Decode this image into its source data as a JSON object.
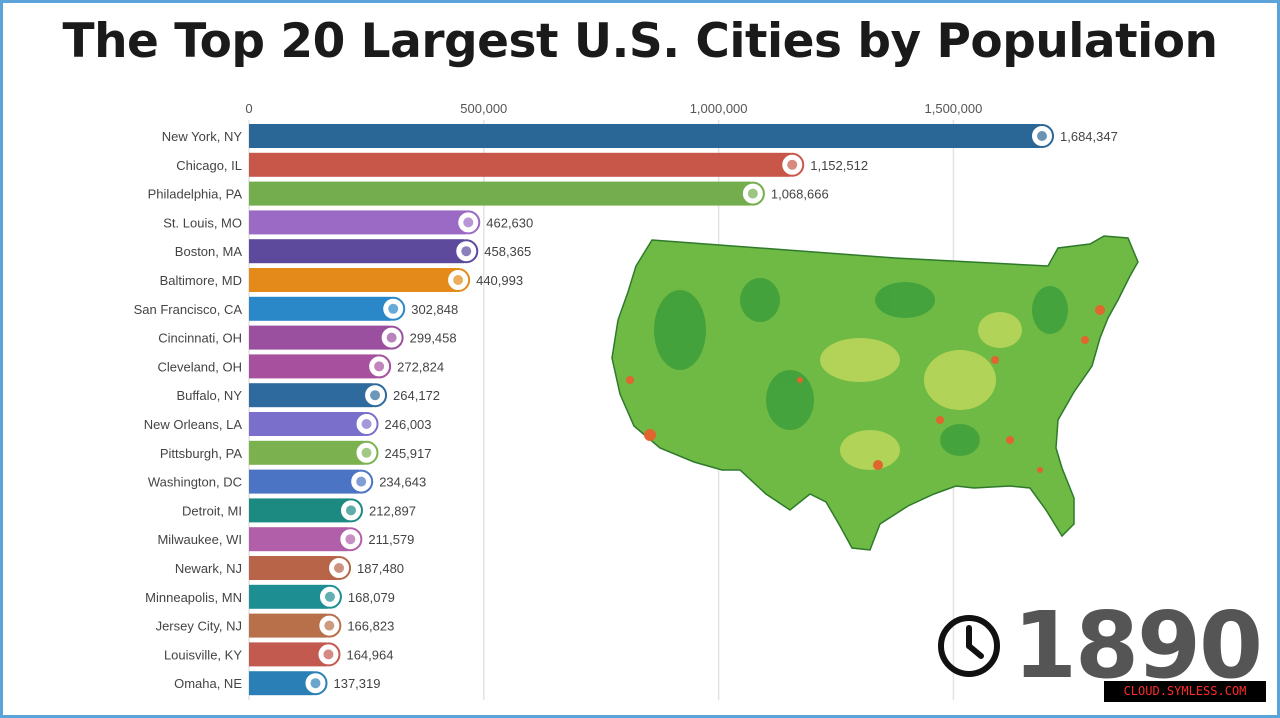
{
  "title": "The Top 20 Largest U.S. Cities by Population",
  "year": "1890",
  "watermark": "CLOUD.SYMLESS.COM",
  "chart_data": {
    "type": "bar",
    "orientation": "horizontal",
    "title": "The Top 20 Largest U.S. Cities by Population",
    "xlim": [
      0,
      1700000
    ],
    "x_ticks": [
      0,
      500000,
      1000000,
      1500000
    ],
    "x_tick_labels": [
      "0",
      "500,000",
      "1,000,000",
      "1,500,000"
    ],
    "grid": true,
    "categories": [
      "New York, NY",
      "Chicago, IL",
      "Philadelphia, PA",
      "St. Louis, MO",
      "Boston, MA",
      "Baltimore, MD",
      "San Francisco, CA",
      "Cincinnati, OH",
      "Cleveland, OH",
      "Buffalo, NY",
      "New Orleans, LA",
      "Pittsburgh, PA",
      "Washington, DC",
      "Detroit, MI",
      "Milwaukee, WI",
      "Newark, NJ",
      "Minneapolis, MN",
      "Jersey City, NJ",
      "Louisville, KY",
      "Omaha, NE"
    ],
    "values": [
      1684347,
      1152512,
      1068666,
      462630,
      458365,
      440993,
      302848,
      299458,
      272824,
      264172,
      246003,
      245917,
      234643,
      212897,
      211579,
      187480,
      168079,
      166823,
      164964,
      137319
    ],
    "value_labels": [
      "1,684,347",
      "1,152,512",
      "1,068,666",
      "462,630",
      "458,365",
      "440,993",
      "302,848",
      "299,458",
      "272,824",
      "264,172",
      "246,003",
      "245,917",
      "234,643",
      "212,897",
      "211,579",
      "187,480",
      "168,079",
      "166,823",
      "164,964",
      "137,319"
    ],
    "colors": [
      "#2a6796",
      "#c8574a",
      "#73ad4d",
      "#9a6ac4",
      "#5d4a9c",
      "#e38a1a",
      "#2a87c8",
      "#9b4f9f",
      "#a6509e",
      "#2f6a9e",
      "#7a6fcb",
      "#7bb24f",
      "#4b74c4",
      "#1d8a82",
      "#b05fa8",
      "#b86448",
      "#1d8e92",
      "#b8704a",
      "#c35a4f",
      "#2a7fb6"
    ]
  }
}
